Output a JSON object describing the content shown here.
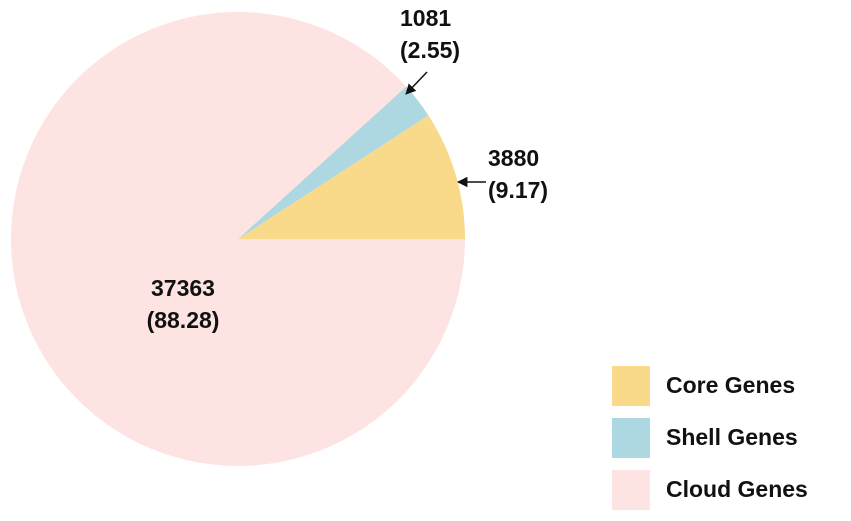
{
  "chart_data": {
    "type": "pie",
    "categories": [
      "Core Genes",
      "Shell Genes",
      "Cloud Genes"
    ],
    "values": [
      3880,
      1081,
      37363
    ],
    "percent_labels": [
      "(9.17)",
      "(2.55)",
      "(88.28)"
    ],
    "colors": [
      "#f9d98a",
      "#aed8e1",
      "#fde3e1"
    ],
    "legend": "bottom-right"
  }
}
